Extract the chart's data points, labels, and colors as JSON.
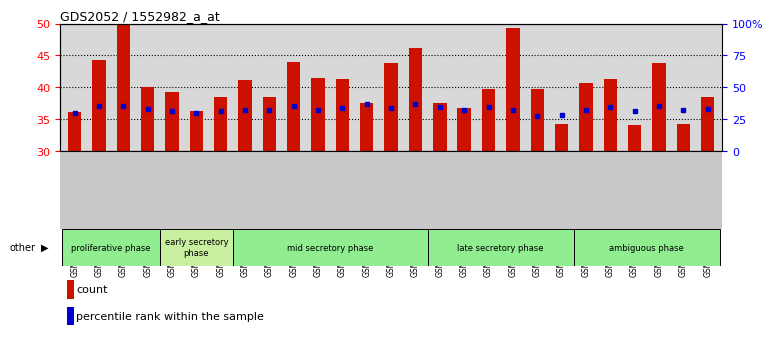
{
  "title": "GDS2052 / 1552982_a_at",
  "samples": [
    "GSM109814",
    "GSM109815",
    "GSM109816",
    "GSM109817",
    "GSM109820",
    "GSM109821",
    "GSM109822",
    "GSM109824",
    "GSM109825",
    "GSM109826",
    "GSM109827",
    "GSM109828",
    "GSM109829",
    "GSM109830",
    "GSM109831",
    "GSM109834",
    "GSM109835",
    "GSM109836",
    "GSM109837",
    "GSM109838",
    "GSM109839",
    "GSM109818",
    "GSM109819",
    "GSM109823",
    "GSM109832",
    "GSM109833",
    "GSM109840"
  ],
  "count_values": [
    36.1,
    44.3,
    49.7,
    40.0,
    39.3,
    36.3,
    38.5,
    41.1,
    38.5,
    44.0,
    41.4,
    41.3,
    37.5,
    43.8,
    46.2,
    37.5,
    36.8,
    39.8,
    49.3,
    39.8,
    34.2,
    40.7,
    41.3,
    34.1,
    43.8,
    34.2,
    38.5
  ],
  "percentile_values": [
    36.0,
    37.0,
    37.0,
    36.6,
    36.3,
    35.9,
    36.3,
    36.5,
    36.5,
    37.0,
    36.5,
    36.8,
    37.3,
    36.8,
    37.3,
    36.9,
    36.5,
    36.9,
    36.5,
    35.5,
    35.7,
    36.5,
    36.9,
    36.2,
    37.0,
    36.5,
    36.6
  ],
  "phases": [
    {
      "label": "proliferative phase",
      "start": 0,
      "end": 4,
      "color": "#90EE90"
    },
    {
      "label": "early secretory\nphase",
      "start": 4,
      "end": 7,
      "color": "#c8f0a0"
    },
    {
      "label": "mid secretory phase",
      "start": 7,
      "end": 15,
      "color": "#90EE90"
    },
    {
      "label": "late secretory phase",
      "start": 15,
      "end": 21,
      "color": "#90EE90"
    },
    {
      "label": "ambiguous phase",
      "start": 21,
      "end": 27,
      "color": "#90EE90"
    }
  ],
  "ylim_left": [
    30,
    50
  ],
  "ylim_right": [
    0,
    100
  ],
  "bar_color": "#CC1100",
  "dot_color": "#0000CC",
  "plot_bg_color": "#d8d8d8",
  "xtick_bg_color": "#c8c8c8"
}
